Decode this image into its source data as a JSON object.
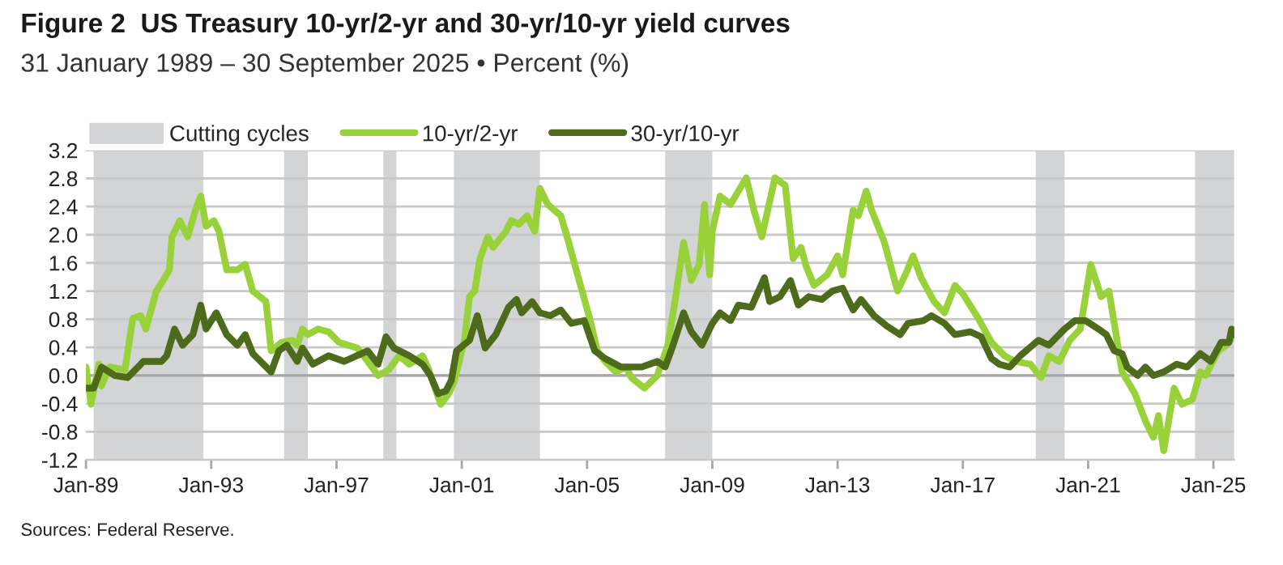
{
  "chart_data": {
    "type": "line",
    "title": "Figure 2  US Treasury 10-yr/2-yr and 30-yr/10-yr yield curves",
    "subtitle": "31 January 1989 – 30 September 2025 • Percent (%)",
    "annotations": [
      "Sources: Federal Reserve."
    ],
    "xlim": [
      "1989-01",
      "2025-09"
    ],
    "xticks": [
      {
        "value": "1989-01",
        "label": "Jan-89"
      },
      {
        "value": "1993-01",
        "label": "Jan-93"
      },
      {
        "value": "1997-01",
        "label": "Jan-97"
      },
      {
        "value": "2001-01",
        "label": "Jan-01"
      },
      {
        "value": "2005-01",
        "label": "Jan-05"
      },
      {
        "value": "2009-01",
        "label": "Jan-09"
      },
      {
        "value": "2013-01",
        "label": "Jan-13"
      },
      {
        "value": "2017-01",
        "label": "Jan-17"
      },
      {
        "value": "2021-01",
        "label": "Jan-21"
      },
      {
        "value": "2025-01",
        "label": "Jan-25"
      }
    ],
    "ylim": [
      -1.2,
      3.2
    ],
    "yticks": [
      {
        "value": -1.2,
        "label": "-1.2"
      },
      {
        "value": -0.8,
        "label": "-0.8"
      },
      {
        "value": -0.4,
        "label": "-0.4"
      },
      {
        "value": 0,
        "label": "0.0"
      },
      {
        "value": 0.4,
        "label": "0.4"
      },
      {
        "value": 0.8,
        "label": "0.8"
      },
      {
        "value": 1.2,
        "label": "1.2"
      },
      {
        "value": 1.6,
        "label": "1.6"
      },
      {
        "value": 2.0,
        "label": "2.0"
      },
      {
        "value": 2.4,
        "label": "2.4"
      },
      {
        "value": 2.8,
        "label": "2.8"
      },
      {
        "value": 3.2,
        "label": "3.2"
      }
    ],
    "grid": "y",
    "legend": "top left",
    "ref_lines": [
      {
        "axis": "y",
        "value": 0,
        "color": "#a6a6a6"
      }
    ],
    "bands": [
      {
        "axis": "x",
        "from": "1989-04",
        "to": "1992-10",
        "label": "Cutting cycles",
        "color": "#d3d4d6"
      },
      {
        "axis": "x",
        "from": "1995-05",
        "to": "1996-02",
        "color": "#d3d4d6"
      },
      {
        "axis": "x",
        "from": "1998-07",
        "to": "1998-12",
        "color": "#d3d4d6"
      },
      {
        "axis": "x",
        "from": "2000-10",
        "to": "2003-07",
        "color": "#d3d4d6"
      },
      {
        "axis": "x",
        "from": "2007-07",
        "to": "2009-01",
        "color": "#d3d4d6"
      },
      {
        "axis": "x",
        "from": "2019-05",
        "to": "2020-04",
        "color": "#d3d4d6"
      },
      {
        "axis": "x",
        "from": "2024-06",
        "to": "2025-09",
        "color": "#d3d4d6"
      }
    ],
    "series": [
      {
        "name": "10-yr/2-yr",
        "color": "#99d13b",
        "x": [
          "1989-01",
          "1989-03",
          "1989-06",
          "1989-07",
          "1989-10",
          "1990-04",
          "1990-07",
          "1990-10",
          "1990-12",
          "1991-04",
          "1991-06",
          "1991-09",
          "1991-10",
          "1992-01",
          "1992-04",
          "1992-07",
          "1992-09",
          "1992-11",
          "1993-02",
          "1993-04",
          "1993-07",
          "1993-11",
          "1994-02",
          "1994-05",
          "1994-10",
          "1994-12",
          "1995-04",
          "1995-08",
          "1995-10",
          "1995-12",
          "1996-02",
          "1996-06",
          "1996-10",
          "1997-02",
          "1997-09",
          "1998-01",
          "1998-05",
          "1998-09",
          "1999-01",
          "1999-05",
          "1999-10",
          "1999-12",
          "2000-02",
          "2000-05",
          "2000-08",
          "2000-10",
          "2001-02",
          "2001-04",
          "2001-06",
          "2001-08",
          "2001-11",
          "2002-01",
          "2002-06",
          "2002-08",
          "2002-11",
          "2003-02",
          "2003-05",
          "2003-07",
          "2003-10",
          "2004-03",
          "2004-06",
          "2004-10",
          "2005-02",
          "2005-05",
          "2005-08",
          "2005-12",
          "2006-04",
          "2006-06",
          "2006-11",
          "2007-04",
          "2007-08",
          "2007-11",
          "2008-02",
          "2008-05",
          "2008-08",
          "2008-10",
          "2008-12",
          "2009-01",
          "2009-04",
          "2009-08",
          "2010-02",
          "2010-05",
          "2010-08",
          "2011-01",
          "2011-05",
          "2011-08",
          "2011-11",
          "2012-01",
          "2012-04",
          "2012-09",
          "2013-01",
          "2013-03",
          "2013-07",
          "2013-09",
          "2013-12",
          "2014-02",
          "2014-07",
          "2014-12",
          "2015-03",
          "2015-06",
          "2015-09",
          "2016-02",
          "2016-06",
          "2016-10",
          "2017-01",
          "2017-07",
          "2017-12",
          "2018-05",
          "2018-09",
          "2019-03",
          "2019-07",
          "2019-10",
          "2020-02",
          "2020-06",
          "2020-10",
          "2021-02",
          "2021-06",
          "2021-09",
          "2022-02",
          "2022-07",
          "2022-11",
          "2023-02",
          "2023-04",
          "2023-06",
          "2023-10",
          "2024-01",
          "2024-05",
          "2024-08",
          "2024-10",
          "2025-03",
          "2025-06",
          "2025-09"
        ],
        "values": [
          0.12,
          -0.41,
          0.16,
          -0.15,
          0.12,
          0.08,
          0.81,
          0.85,
          0.66,
          1.2,
          1.31,
          1.5,
          1.97,
          2.2,
          1.97,
          2.35,
          2.55,
          2.12,
          2.2,
          2.05,
          1.5,
          1.5,
          1.58,
          1.2,
          1.05,
          0.35,
          0.47,
          0.5,
          0.43,
          0.66,
          0.58,
          0.66,
          0.62,
          0.47,
          0.39,
          0.2,
          0.0,
          0.08,
          0.28,
          0.16,
          0.28,
          0.12,
          -0.1,
          -0.41,
          -0.26,
          -0.1,
          0.5,
          1.12,
          1.2,
          1.66,
          1.97,
          1.82,
          2.05,
          2.2,
          2.15,
          2.27,
          2.05,
          2.66,
          2.43,
          2.27,
          1.89,
          1.35,
          0.81,
          0.35,
          0.2,
          0.05,
          0.12,
          -0.03,
          -0.18,
          0.0,
          0.43,
          1.12,
          1.89,
          1.35,
          1.58,
          2.43,
          1.43,
          2.05,
          2.55,
          2.43,
          2.81,
          2.35,
          1.97,
          2.81,
          2.7,
          1.66,
          1.82,
          1.55,
          1.28,
          1.43,
          1.7,
          1.43,
          2.35,
          2.27,
          2.62,
          2.35,
          1.89,
          1.2,
          1.43,
          1.7,
          1.39,
          1.05,
          0.89,
          1.28,
          1.16,
          0.81,
          0.47,
          0.28,
          0.2,
          0.16,
          -0.03,
          0.28,
          0.2,
          0.5,
          0.66,
          1.58,
          1.12,
          1.2,
          0.05,
          -0.26,
          -0.65,
          -0.88,
          -0.57,
          -1.07,
          -0.18,
          -0.41,
          -0.34,
          0.05,
          0.0,
          0.35,
          0.43,
          0.58
        ]
      },
      {
        "name": "30-yr/10-yr",
        "color": "#4e6b1c",
        "x": [
          "1989-01",
          "1989-04",
          "1989-07",
          "1989-12",
          "1990-05",
          "1990-09",
          "1990-11",
          "1991-06",
          "1991-08",
          "1991-11",
          "1992-02",
          "1992-06",
          "1992-09",
          "1992-11",
          "1993-03",
          "1993-07",
          "1993-11",
          "1994-02",
          "1994-05",
          "1994-12",
          "1995-03",
          "1995-06",
          "1995-10",
          "1995-12",
          "1996-04",
          "1996-10",
          "1997-04",
          "1998-01",
          "1998-05",
          "1998-08",
          "1998-11",
          "1999-05",
          "1999-10",
          "2000-01",
          "2000-04",
          "2000-07",
          "2000-09",
          "2000-11",
          "2001-04",
          "2001-07",
          "2001-10",
          "2002-02",
          "2002-07",
          "2002-10",
          "2002-12",
          "2003-04",
          "2003-07",
          "2003-11",
          "2004-03",
          "2004-07",
          "2004-12",
          "2005-04",
          "2005-08",
          "2006-02",
          "2006-06",
          "2006-10",
          "2007-04",
          "2007-07",
          "2007-10",
          "2008-02",
          "2008-05",
          "2008-09",
          "2009-01",
          "2009-04",
          "2009-08",
          "2009-11",
          "2010-04",
          "2010-09",
          "2010-11",
          "2011-03",
          "2011-07",
          "2011-10",
          "2012-02",
          "2012-07",
          "2012-11",
          "2013-03",
          "2013-07",
          "2013-10",
          "2014-03",
          "2014-08",
          "2015-01",
          "2015-04",
          "2015-10",
          "2016-01",
          "2016-06",
          "2016-10",
          "2017-04",
          "2017-08",
          "2017-12",
          "2018-03",
          "2018-07",
          "2018-11",
          "2019-06",
          "2019-10",
          "2020-04",
          "2020-08",
          "2020-12",
          "2021-05",
          "2021-08",
          "2021-11",
          "2022-02",
          "2022-04",
          "2022-08",
          "2022-11",
          "2023-02",
          "2023-06",
          "2023-11",
          "2024-03",
          "2024-08",
          "2024-12",
          "2025-04",
          "2025-07",
          "2025-08",
          "2025-09"
        ],
        "values": [
          -0.18,
          -0.18,
          0.12,
          0.0,
          -0.03,
          0.12,
          0.2,
          0.2,
          0.28,
          0.66,
          0.43,
          0.58,
          1.0,
          0.66,
          0.89,
          0.58,
          0.43,
          0.58,
          0.31,
          0.05,
          0.35,
          0.43,
          0.2,
          0.39,
          0.16,
          0.28,
          0.2,
          0.35,
          0.16,
          0.55,
          0.39,
          0.28,
          0.16,
          0.0,
          -0.26,
          -0.22,
          -0.07,
          0.35,
          0.5,
          0.85,
          0.39,
          0.58,
          0.97,
          1.08,
          0.89,
          1.05,
          0.89,
          0.85,
          0.93,
          0.74,
          0.78,
          0.35,
          0.24,
          0.12,
          0.12,
          0.12,
          0.2,
          0.12,
          0.43,
          0.89,
          0.62,
          0.43,
          0.74,
          0.89,
          0.78,
          1.0,
          0.97,
          1.39,
          1.05,
          1.12,
          1.35,
          1.0,
          1.12,
          1.08,
          1.2,
          1.24,
          0.93,
          1.08,
          0.85,
          0.7,
          0.58,
          0.74,
          0.78,
          0.85,
          0.74,
          0.58,
          0.62,
          0.55,
          0.24,
          0.16,
          0.12,
          0.28,
          0.5,
          0.43,
          0.66,
          0.78,
          0.78,
          0.66,
          0.58,
          0.35,
          0.31,
          0.12,
          0.0,
          0.12,
          0.0,
          0.05,
          0.16,
          0.12,
          0.31,
          0.2,
          0.47,
          0.47,
          0.66,
          0.58
        ]
      }
    ]
  }
}
